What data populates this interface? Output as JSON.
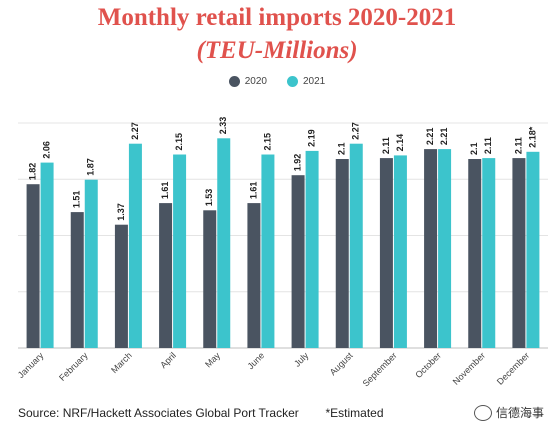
{
  "chart_data": {
    "type": "bar",
    "title": "Monthly retail imports 2020-2021",
    "subtitle": "(TEU-Millions)",
    "categories": [
      "January",
      "February",
      "March",
      "April",
      "May",
      "June",
      "July",
      "August",
      "September",
      "October",
      "November",
      "December"
    ],
    "series": [
      {
        "name": "2020",
        "color": "#4a5461",
        "values": [
          1.82,
          1.51,
          1.37,
          1.61,
          1.53,
          1.61,
          1.92,
          2.1,
          2.11,
          2.21,
          2.1,
          2.11
        ],
        "labels": [
          "1.82",
          "1.51",
          "1.37",
          "1.61",
          "1.53",
          "1.61",
          "1.92",
          "2.1",
          "2.11",
          "2.21",
          "2.1",
          "2.11"
        ]
      },
      {
        "name": "2021",
        "color": "#3cc4cc",
        "values": [
          2.06,
          1.87,
          2.27,
          2.15,
          2.33,
          2.15,
          2.19,
          2.27,
          2.14,
          2.21,
          2.11,
          2.18
        ],
        "labels": [
          "2.06",
          "1.87",
          "2.27",
          "2.15",
          "2.33",
          "2.15",
          "2.19",
          "2.27",
          "2.14",
          "2.21",
          "2.11",
          "2.18*"
        ]
      }
    ],
    "ylim": [
      0,
      2.5
    ],
    "grid": true,
    "legend": "top-center"
  },
  "source": "Source: NRF/Hackett Associates Global Port Tracker",
  "note": "*Estimated",
  "brand_text": "信德海事"
}
